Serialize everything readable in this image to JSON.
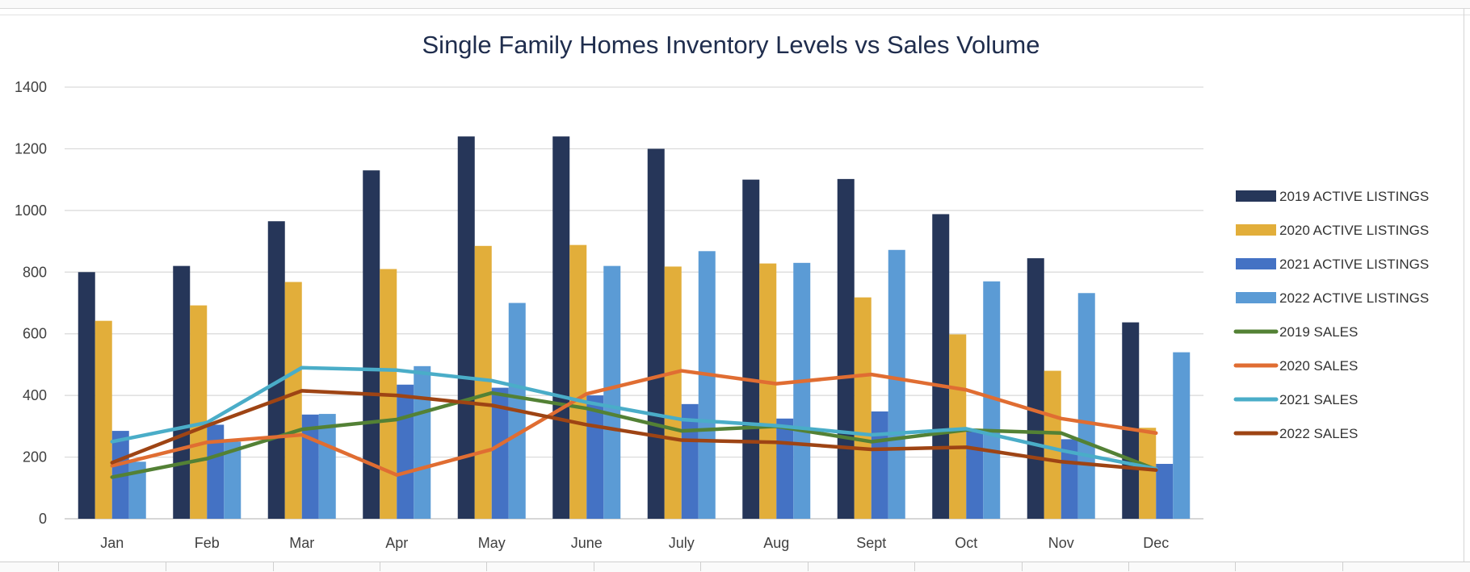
{
  "chart_data": {
    "type": "bar",
    "title": "Single Family Homes Inventory Levels vs Sales Volume",
    "xlabel": "",
    "ylabel": "",
    "ylim": [
      0,
      1400
    ],
    "yticks": [
      "0",
      "200",
      "400",
      "600",
      "800",
      "1000",
      "1200",
      "1400"
    ],
    "grid": true,
    "legend_position": "right",
    "categories": [
      "Jan",
      "Feb",
      "Mar",
      "Apr",
      "May",
      "June",
      "July",
      "Aug",
      "Sept",
      "Oct",
      "Nov",
      "Dec"
    ],
    "series": [
      {
        "name": "2019  ACTIVE LISTINGS",
        "kind": "bar",
        "color": "#263659",
        "values": [
          800,
          820,
          965,
          1130,
          1240,
          1240,
          1200,
          1100,
          1102,
          988,
          845,
          637
        ]
      },
      {
        "name": "2020 ACTIVE LISTINGS",
        "kind": "bar",
        "color": "#E2AE3A",
        "values": [
          642,
          692,
          768,
          810,
          885,
          888,
          818,
          828,
          718,
          598,
          480,
          295
        ]
      },
      {
        "name": "2021 ACTIVE LISTINGS",
        "kind": "bar",
        "color": "#4472C4",
        "values": [
          285,
          305,
          338,
          435,
          425,
          400,
          372,
          325,
          348,
          290,
          258,
          178
        ]
      },
      {
        "name": "2022 ACTIVE LISTINGS",
        "kind": "bar",
        "color": "#5B9BD5",
        "values": [
          185,
          250,
          340,
          495,
          700,
          820,
          868,
          830,
          872,
          770,
          732,
          540
        ]
      },
      {
        "name": "2019 SALES",
        "kind": "line",
        "color": "#538135",
        "values": [
          135,
          195,
          290,
          322,
          408,
          358,
          285,
          300,
          250,
          288,
          278,
          160
        ]
      },
      {
        "name": "2020 SALES",
        "kind": "line",
        "color": "#E06D32",
        "values": [
          172,
          248,
          272,
          142,
          225,
          405,
          480,
          438,
          468,
          418,
          325,
          278
        ]
      },
      {
        "name": "2021 SALES",
        "kind": "line",
        "color": "#4AADC8",
        "values": [
          250,
          312,
          490,
          482,
          448,
          378,
          322,
          302,
          272,
          292,
          222,
          162
        ]
      },
      {
        "name": "2022 SALES",
        "kind": "line",
        "color": "#9E4414",
        "values": [
          182,
          302,
          415,
          400,
          368,
          305,
          255,
          248,
          225,
          232,
          185,
          158
        ]
      }
    ]
  }
}
